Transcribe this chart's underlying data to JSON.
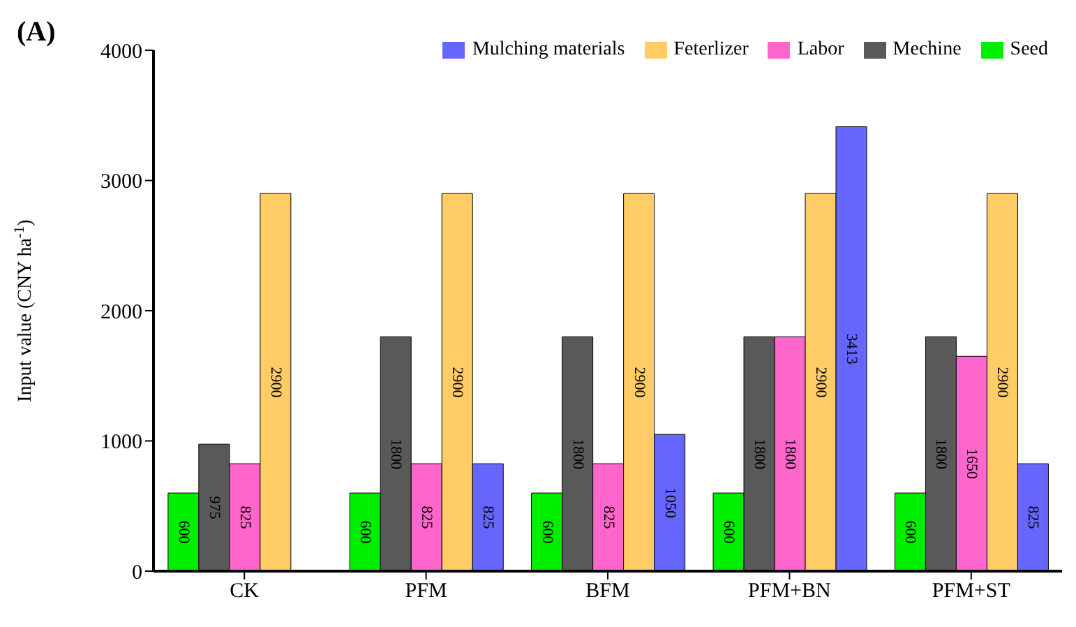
{
  "chart_data": {
    "type": "bar",
    "title": "(A)",
    "ylabel": "Input value (CNY ha$^{-1}$)",
    "categories": [
      "CK",
      "PFM",
      "BFM",
      "PFM+BN",
      "PFM+ST"
    ],
    "series": [
      {
        "name": "Seed",
        "color": "#00ee00",
        "values": [
          600,
          600,
          600,
          600,
          600
        ]
      },
      {
        "name": "Mechine",
        "color": "#595959",
        "values": [
          975,
          1800,
          1800,
          1800,
          1800
        ]
      },
      {
        "name": "Labor",
        "color": "#ff66cc",
        "values": [
          825,
          825,
          825,
          1800,
          1650
        ]
      },
      {
        "name": "Feterlizer",
        "color": "#ffcc66",
        "values": [
          2900,
          2900,
          2900,
          2900,
          2900
        ]
      },
      {
        "name": "Mulching materials",
        "color": "#6666ff",
        "values": [
          null,
          825,
          1050,
          3413,
          825
        ]
      }
    ],
    "ylim": [
      0,
      4000
    ],
    "yticks": [
      0,
      1000,
      2000,
      3000,
      4000
    ],
    "grid": false,
    "legend": "top right",
    "data_labels": true
  }
}
